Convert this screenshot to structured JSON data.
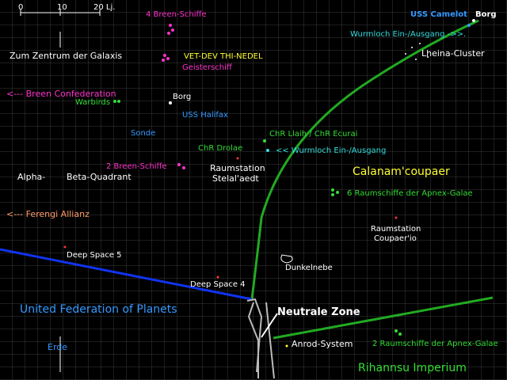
{
  "scale": {
    "zero": "0",
    "ten": "10",
    "twenty": "20 Lj."
  },
  "labels": {
    "breen4": "4 Breen-Schiffe",
    "camelot": "USS Camelot",
    "borg_top": "Borg",
    "wurmloch_top": "Wurmloch Ein-/Ausgang ->>.",
    "zentrum": "Zum Zentrum der Galaxis",
    "vetdev": "VET-DEV THI-NEDEL",
    "geist": "Geisterschiff",
    "lheina": "Lheina-Cluster",
    "breen_conf": "<--- Breen Confederation",
    "warbirds": "Warbirds",
    "borg_mid": "Borg",
    "halifax": "USS Halifax",
    "sonde": "Sonde",
    "llaih": "ChR Llaih / ChR Ecurai",
    "wurmloch_mid": "<< Wurmloch Ein-/Ausgang",
    "drolae": "ChR Drolae",
    "breen2": "2 Breen-Schiffe",
    "stelal1": "Raumstation",
    "stelal2": "Stelal'aedt",
    "calanam": "Calanam'coupaer",
    "alpha": "Alpha-",
    "beta": "Beta-Quadrant",
    "apnex6": "6 Raumschiffe der Apnex-Galae",
    "ferengi": "<--- Ferengi Allianz",
    "coupa1": "Raumstation",
    "coupa2": "Coupaer'io",
    "ds5": "Deep Space 5",
    "dunkel": "Dunkelnebe",
    "ds4": "Deep Space 4",
    "ufp": "United Federation of Planets",
    "neutral": "Neutrale Zone",
    "apnex2": "2 Raumschiffe der Apnex-Galae",
    "anrod": "Anrod-System",
    "erde": "Erde",
    "rihannsu": "Rihannsu Imperium"
  }
}
